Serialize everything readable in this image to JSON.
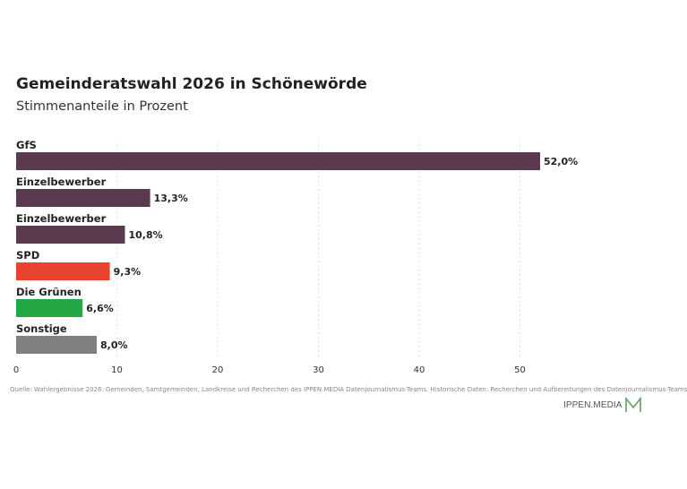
{
  "chart_data": {
    "type": "bar",
    "orientation": "horizontal",
    "title": "Gemeinderatswahl 2026 in Schönewörde",
    "subtitle": "Stimmenanteile in Prozent",
    "categories": [
      "GfS",
      "Einzelbewerber",
      "Einzelbewerber",
      "SPD",
      "Die Grünen",
      "Sonstige"
    ],
    "values": [
      52.0,
      13.3,
      10.8,
      9.3,
      6.6,
      8.0
    ],
    "value_labels": [
      "52,0%",
      "13,3%",
      "10,8%",
      "9,3%",
      "6,6%",
      "8,0%"
    ],
    "colors": [
      "#5b3a4f",
      "#5b3a4f",
      "#5b3a4f",
      "#e8432d",
      "#22a744",
      "#808080"
    ],
    "xlim": [
      0,
      60
    ],
    "xticks": [
      0,
      10,
      20,
      30,
      40,
      50
    ],
    "grid": true
  },
  "source": "Quelle: Wahlergebnisse 2026: Gemeinden, Samtgemeinden, Landkreise und Recherchen des IPPEN.MEDIA Datenjournalismus-Teams. Historische Daten: Recherchen und Aufbereitungen des Datenjournalismus-Teams",
  "logo": {
    "text": "IPPEN.MEDIA",
    "color": "#5aa55a"
  }
}
